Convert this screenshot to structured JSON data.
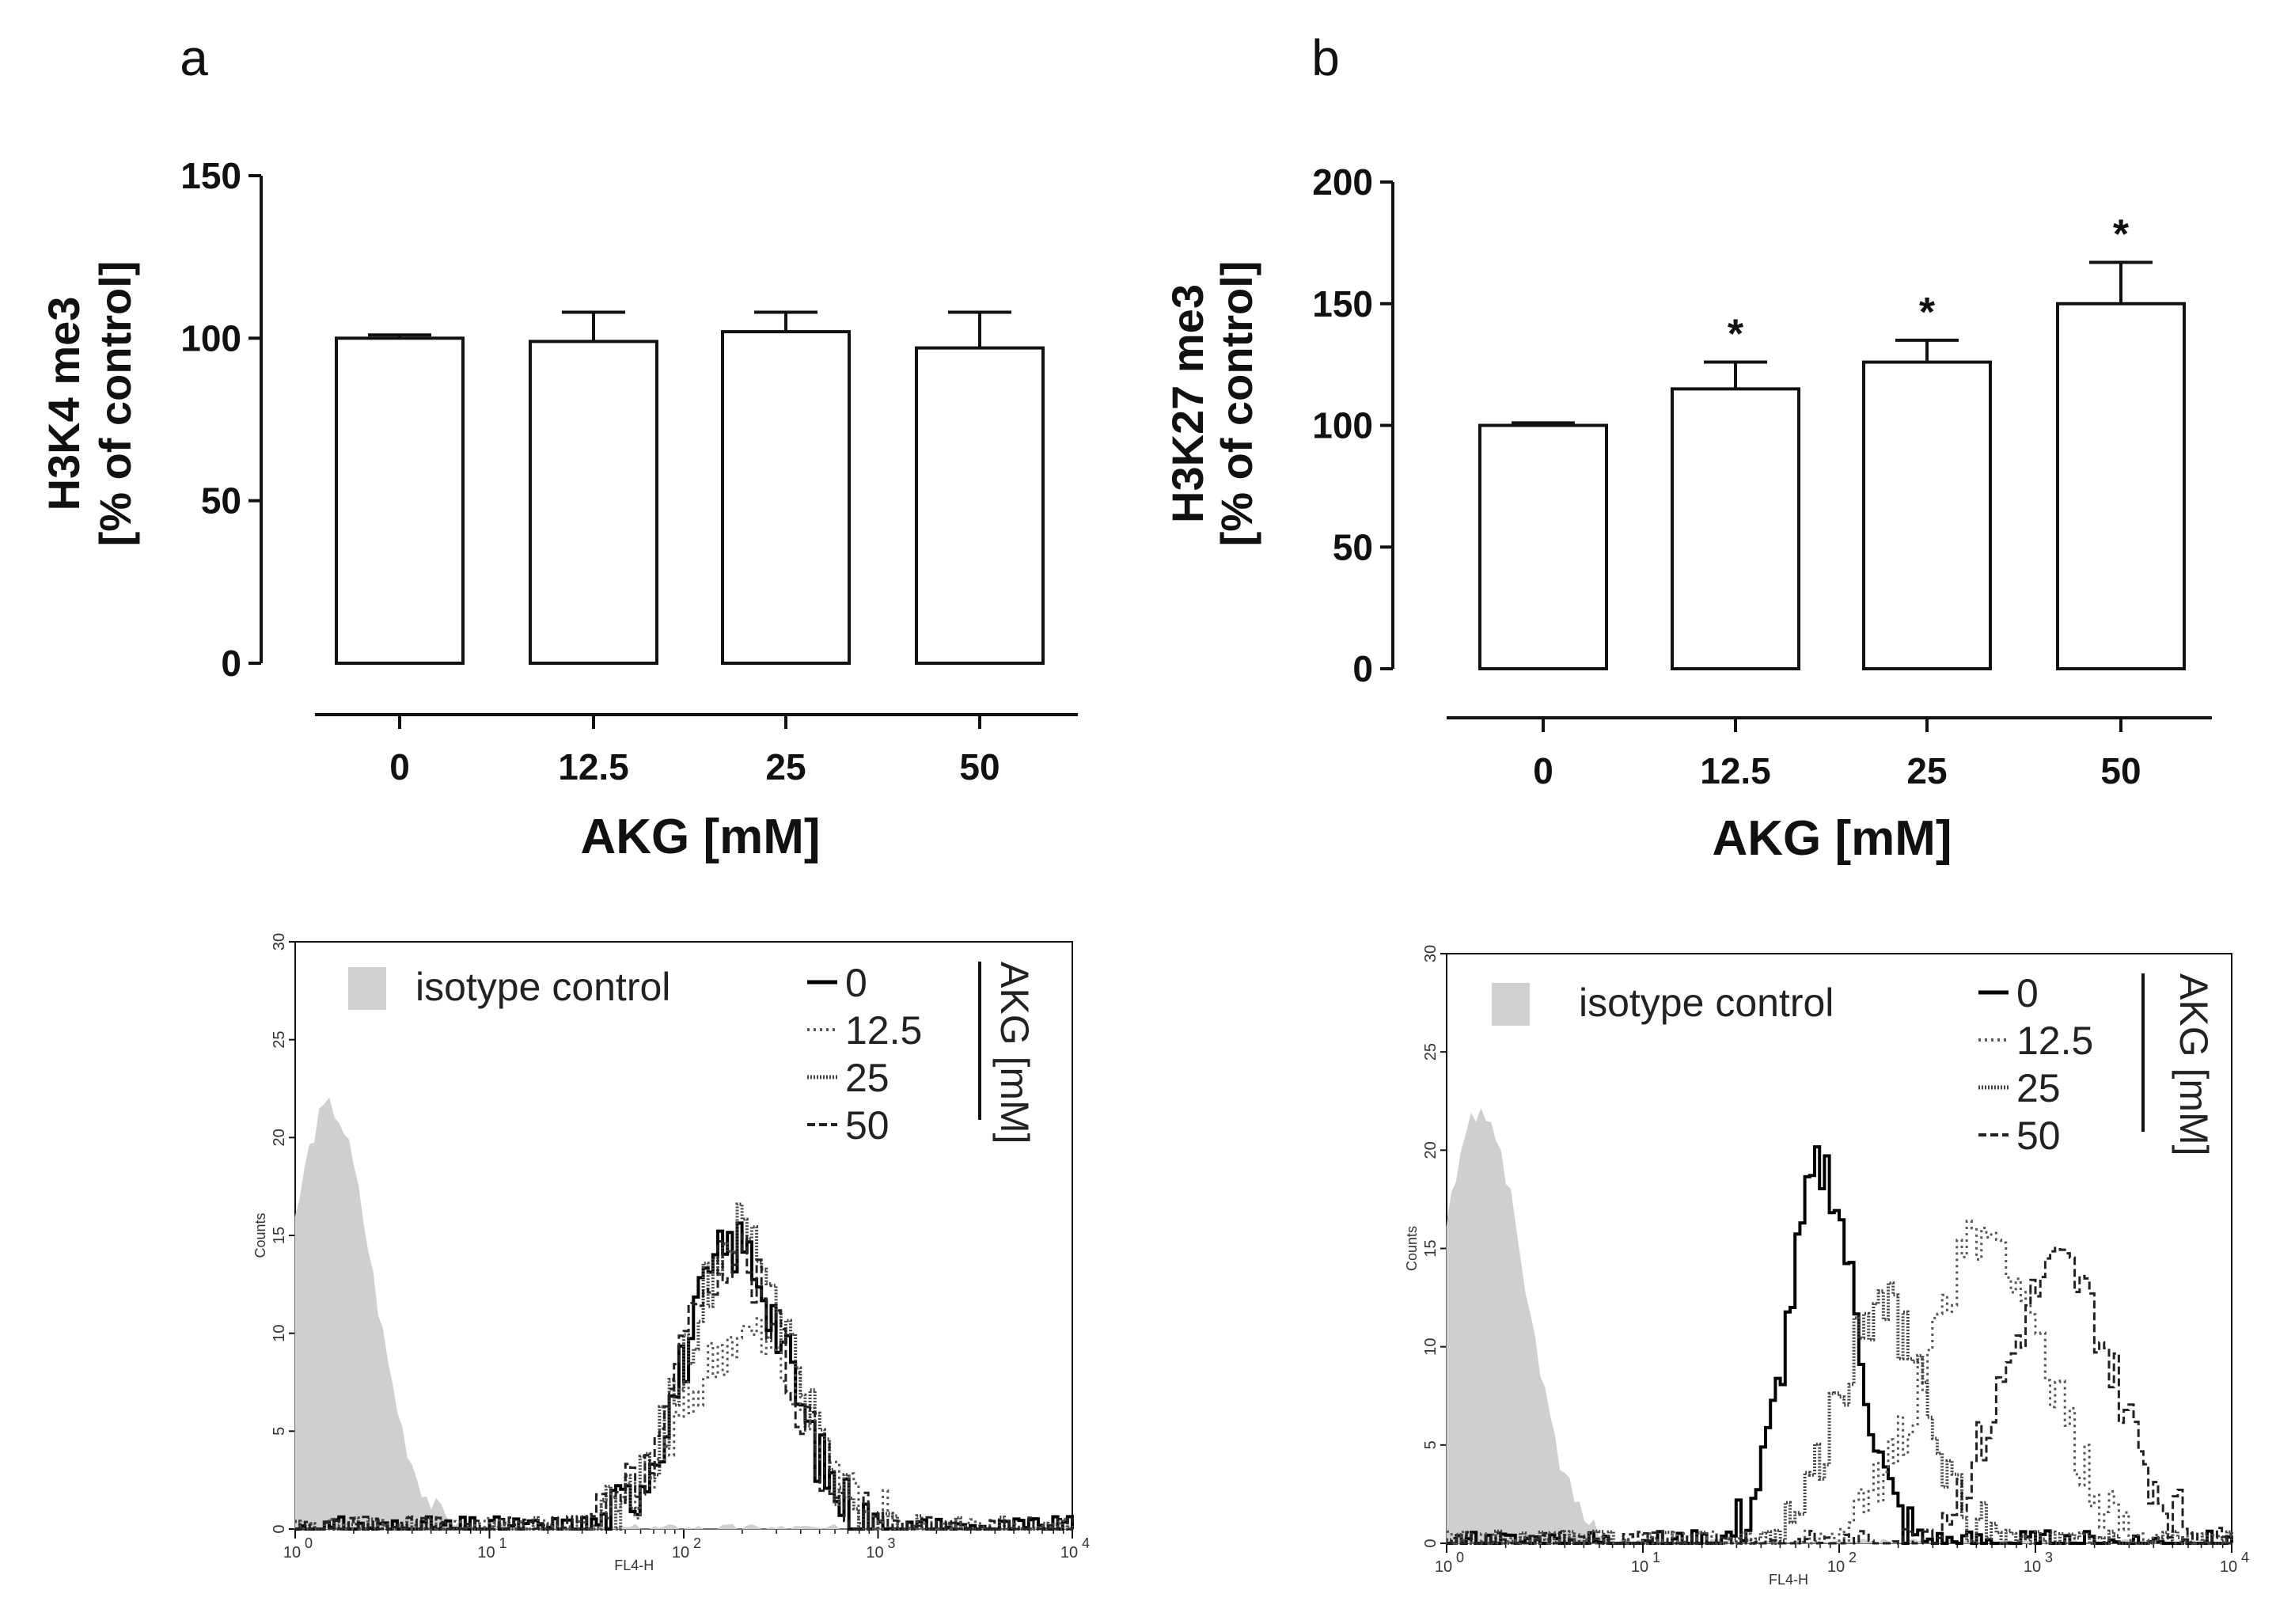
{
  "chart_data": [
    {
      "type": "bar",
      "panel": "a",
      "categories": [
        "0",
        "12.5",
        "25",
        "50"
      ],
      "values": [
        100,
        99,
        102,
        97
      ],
      "errors": [
        1,
        9,
        6,
        11
      ],
      "significance": [
        "",
        "",
        "",
        ""
      ],
      "ylabel_line1": "H3K4 me3",
      "ylabel_line2": "[% of control]",
      "xlabel": "AKG [mM]",
      "ylim": [
        0,
        150
      ],
      "yticks": [
        "0",
        "50",
        "100",
        "150"
      ]
    },
    {
      "type": "bar",
      "panel": "b",
      "categories": [
        "0",
        "12.5",
        "25",
        "50"
      ],
      "values": [
        100,
        115,
        126,
        150
      ],
      "errors": [
        1,
        11,
        9,
        17
      ],
      "significance": [
        "",
        "*",
        "*",
        "*"
      ],
      "ylabel_line1": "H3K27 me3",
      "ylabel_line2": "[% of control]",
      "xlabel": "AKG [mM]",
      "ylim": [
        0,
        200
      ],
      "yticks": [
        "0",
        "50",
        "100",
        "150",
        "200"
      ]
    },
    {
      "type": "line",
      "panel": "a-histogram",
      "xlabel": "FL4-H",
      "ylabel": "Counts",
      "xscale": "log",
      "xlim": [
        1,
        10000
      ],
      "ylim": [
        0,
        30
      ],
      "yticks": [
        "0",
        "5",
        "10",
        "15",
        "20",
        "25",
        "30"
      ],
      "xtick_bases": [
        "10",
        "10",
        "10",
        "10",
        "10"
      ],
      "xtick_exponents": [
        "0",
        "1",
        "2",
        "3",
        "4"
      ],
      "isotype_label": "isotype control",
      "legend_title": "AKG [mM]",
      "series": [
        {
          "name": "isotype control",
          "style": "filled",
          "peak_x": 1.5,
          "peak_y": 21.5,
          "log_spread": 0.22
        },
        {
          "name": "0",
          "style": "solid",
          "peak_x": 180,
          "peak_y": 14.5,
          "log_spread": 0.26
        },
        {
          "name": "12.5",
          "style": "dotted",
          "peak_x": 200,
          "peak_y": 10,
          "log_spread": 0.3
        },
        {
          "name": "25",
          "style": "dense",
          "peak_x": 190,
          "peak_y": 15,
          "log_spread": 0.27
        },
        {
          "name": "50",
          "style": "dashed",
          "peak_x": 175,
          "peak_y": 14,
          "log_spread": 0.27
        }
      ]
    },
    {
      "type": "line",
      "panel": "b-histogram",
      "xlabel": "FL4-H",
      "ylabel": "Counts",
      "xscale": "log",
      "xlim": [
        1,
        10000
      ],
      "ylim": [
        0,
        30
      ],
      "yticks": [
        "0",
        "5",
        "10",
        "15",
        "20",
        "25",
        "30"
      ],
      "xtick_bases": [
        "10",
        "10",
        "10",
        "10",
        "10"
      ],
      "xtick_exponents": [
        "0",
        "1",
        "2",
        "3",
        "4"
      ],
      "isotype_label": "isotype control",
      "legend_title": "AKG [mM]",
      "series": [
        {
          "name": "isotype control",
          "style": "filled",
          "peak_x": 1.5,
          "peak_y": 22,
          "log_spread": 0.22
        },
        {
          "name": "0",
          "style": "solid",
          "peak_x": 80,
          "peak_y": 19,
          "log_spread": 0.17
        },
        {
          "name": "12.5",
          "style": "dotted",
          "peak_x": 550,
          "peak_y": 15.5,
          "log_spread": 0.3
        },
        {
          "name": "25",
          "style": "dense",
          "peak_x": 160,
          "peak_y": 12,
          "log_spread": 0.22
        },
        {
          "name": "50",
          "style": "dashed",
          "peak_x": 1300,
          "peak_y": 14,
          "log_spread": 0.28
        }
      ]
    }
  ]
}
